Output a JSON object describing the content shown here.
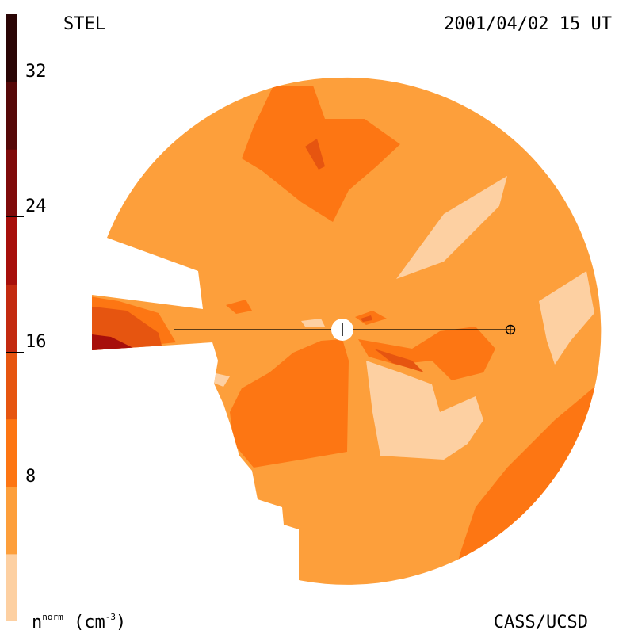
{
  "header": {
    "instrument": "STEL",
    "datetime": "2001/04/02 15 UT"
  },
  "footer": {
    "credit": "CASS/UCSD",
    "unit_base": "n",
    "unit_sup": "norm",
    "unit_rest": " (cm",
    "unit_exp": "-3",
    "unit_close": ")"
  },
  "chart_data": {
    "type": "heatmap",
    "title": "",
    "colorbar": {
      "range": [
        0,
        36
      ],
      "ticks": [
        "8",
        "16",
        "24",
        "32"
      ],
      "tick_values": [
        8,
        16,
        24,
        32
      ],
      "levels": [
        {
          "from": 0,
          "to": 4,
          "color": "#fdd0a2"
        },
        {
          "from": 4,
          "to": 8,
          "color": "#fd9f3b"
        },
        {
          "from": 8,
          "to": 12,
          "color": "#fd7613"
        },
        {
          "from": 12,
          "to": 16,
          "color": "#e65510"
        },
        {
          "from": 16,
          "to": 20,
          "color": "#c32a10"
        },
        {
          "from": 20,
          "to": 24,
          "color": "#a70f0b"
        },
        {
          "from": 24,
          "to": 28,
          "color": "#7f0a0a"
        },
        {
          "from": 28,
          "to": 32,
          "color": "#560808"
        },
        {
          "from": 32,
          "to": 36,
          "color": "#2a0505"
        }
      ]
    },
    "map": {
      "background_level": "#fd9f3b",
      "sun_marker": "plus-circle",
      "earth_marker": "earth-symbol"
    }
  }
}
